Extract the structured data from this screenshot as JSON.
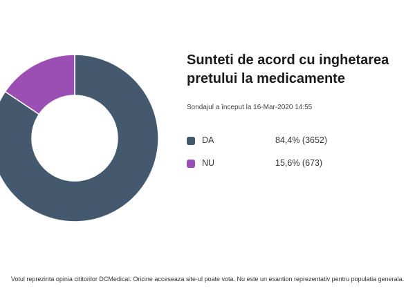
{
  "chart_data": {
    "type": "pie",
    "variant": "donut",
    "title": "Sunteti de acord cu inghetarea pretului la medicamente",
    "subtitle": "Sondajul a început la 16-Mar-2020 14:55",
    "legend_position": "right",
    "slices": [
      {
        "label": "DA",
        "percent": 84.4,
        "count": 3652,
        "display": "84,4% (3652)",
        "color": "#44596e"
      },
      {
        "label": "NU",
        "percent": 15.6,
        "count": 673,
        "display": "15,6% (673)",
        "color": "#9b4fb5"
      }
    ]
  },
  "footer": "Votul reprezinta opinia cititorilor DCMedical. Oricine acceseaza site-ul poate vota. Nu este un esantion reprezentativ pentru populatia generala."
}
